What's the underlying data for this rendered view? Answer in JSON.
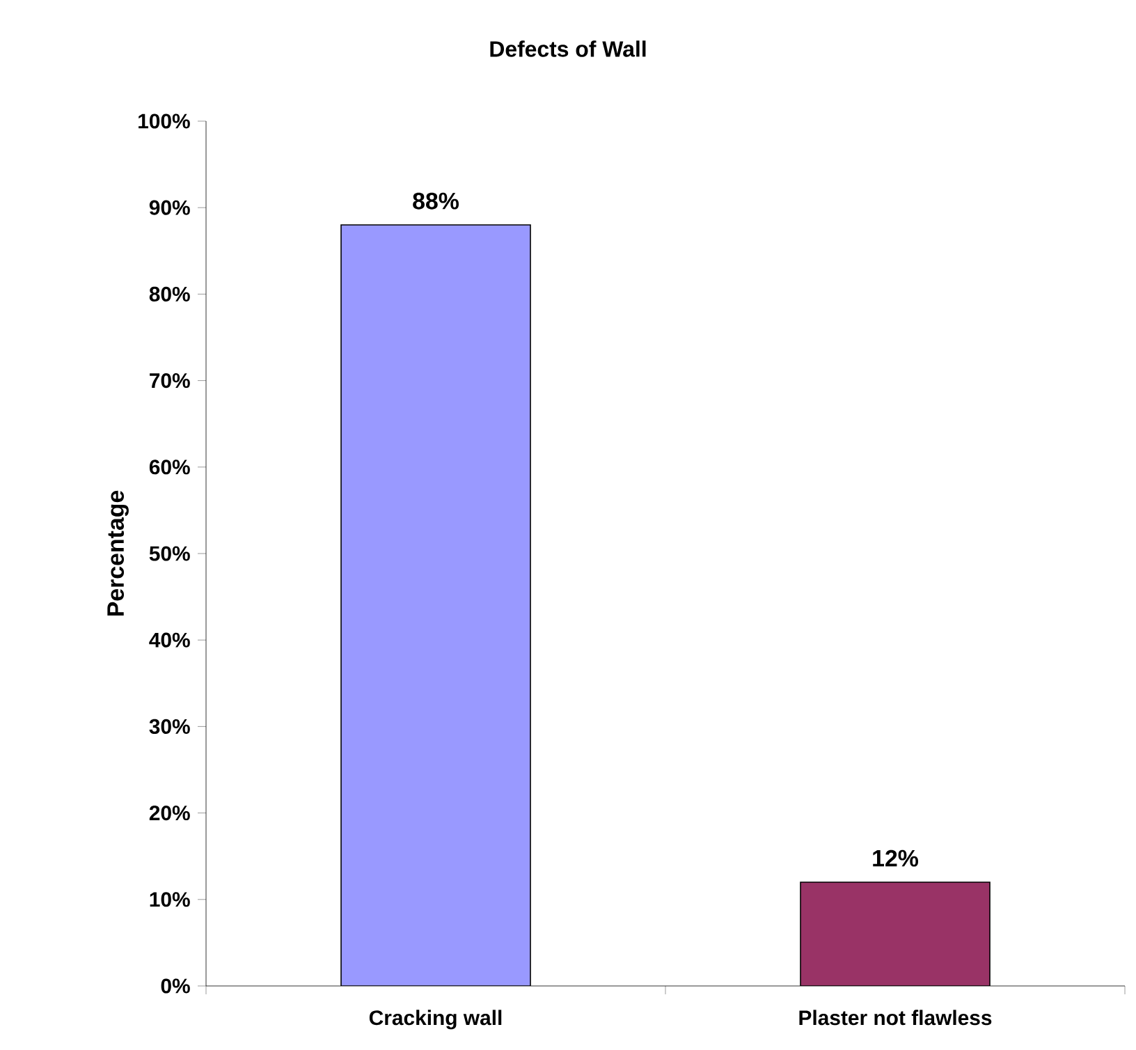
{
  "chart_data": {
    "type": "bar",
    "title": "Defects of Wall",
    "ylabel": "Percentage",
    "categories": [
      "Cracking wall",
      "Plaster not flawless"
    ],
    "values": [
      88,
      12
    ],
    "colors": [
      "#9999ff",
      "#993366"
    ],
    "value_labels": [
      "88%",
      "12%"
    ],
    "ylim": [
      0,
      100
    ],
    "yticks": [
      {
        "value": 0,
        "label": "0%"
      },
      {
        "value": 10,
        "label": "10%"
      },
      {
        "value": 20,
        "label": "20%"
      },
      {
        "value": 30,
        "label": "30%"
      },
      {
        "value": 40,
        "label": "40%"
      },
      {
        "value": 50,
        "label": "50%"
      },
      {
        "value": 60,
        "label": "60%"
      },
      {
        "value": 70,
        "label": "70%"
      },
      {
        "value": 80,
        "label": "80%"
      },
      {
        "value": 90,
        "label": "90%"
      },
      {
        "value": 100,
        "label": "100%"
      }
    ],
    "grid": false,
    "legend": false
  }
}
